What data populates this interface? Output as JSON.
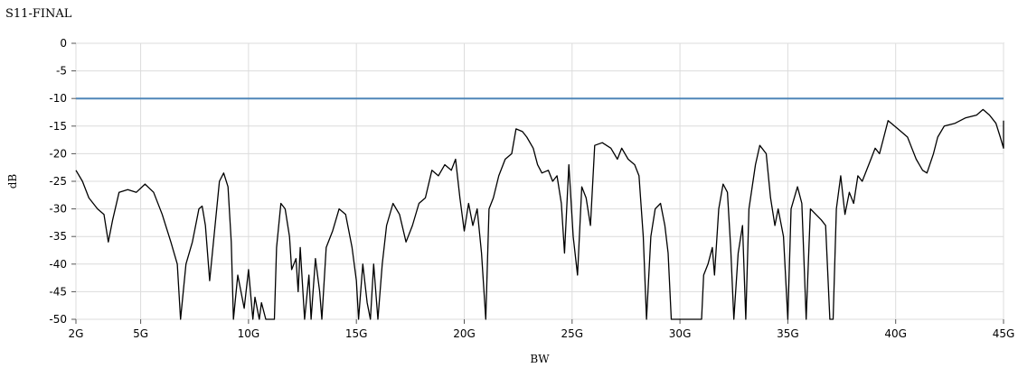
{
  "chart_data": {
    "type": "line",
    "title": "S11-FINAL",
    "xlabel": "BW",
    "ylabel": "dB",
    "xlim": [
      2,
      45
    ],
    "ylim": [
      -50,
      0
    ],
    "grid": true,
    "x_ticks": [
      {
        "value": 2,
        "label": "2G"
      },
      {
        "value": 5,
        "label": "5G"
      },
      {
        "value": 10,
        "label": "10G"
      },
      {
        "value": 15,
        "label": "15G"
      },
      {
        "value": 20,
        "label": "20G"
      },
      {
        "value": 25,
        "label": "25G"
      },
      {
        "value": 30,
        "label": "30G"
      },
      {
        "value": 35,
        "label": "35G"
      },
      {
        "value": 40,
        "label": "40G"
      },
      {
        "value": 45,
        "label": "45G"
      }
    ],
    "y_ticks": [
      0,
      -5,
      -10,
      -15,
      -20,
      -25,
      -30,
      -35,
      -40,
      -45,
      -50
    ],
    "reference_line": {
      "y": -10,
      "color": "#4f86b8"
    },
    "series": [
      {
        "color": "#000000",
        "points": [
          [
            2.0,
            -23
          ],
          [
            2.3,
            -25
          ],
          [
            2.6,
            -28
          ],
          [
            3.0,
            -30
          ],
          [
            3.3,
            -31
          ],
          [
            3.5,
            -36
          ],
          [
            3.7,
            -32
          ],
          [
            4.0,
            -27
          ],
          [
            4.4,
            -26.5
          ],
          [
            4.8,
            -27
          ],
          [
            5.2,
            -25.5
          ],
          [
            5.6,
            -27
          ],
          [
            6.0,
            -31
          ],
          [
            6.4,
            -36
          ],
          [
            6.7,
            -40
          ],
          [
            6.85,
            -50
          ],
          [
            7.1,
            -40
          ],
          [
            7.4,
            -36
          ],
          [
            7.7,
            -30
          ],
          [
            7.85,
            -29.5
          ],
          [
            8.0,
            -33
          ],
          [
            8.2,
            -43
          ],
          [
            8.35,
            -37
          ],
          [
            8.5,
            -31
          ],
          [
            8.65,
            -25
          ],
          [
            8.85,
            -23.5
          ],
          [
            9.05,
            -26
          ],
          [
            9.2,
            -36
          ],
          [
            9.3,
            -50
          ],
          [
            9.5,
            -42
          ],
          [
            9.8,
            -48
          ],
          [
            10.0,
            -41
          ],
          [
            10.2,
            -50
          ],
          [
            10.3,
            -46
          ],
          [
            10.5,
            -50
          ],
          [
            10.6,
            -47
          ],
          [
            10.8,
            -50
          ],
          [
            11.0,
            -50
          ],
          [
            11.2,
            -50
          ],
          [
            11.3,
            -37
          ],
          [
            11.5,
            -29
          ],
          [
            11.7,
            -30
          ],
          [
            11.9,
            -35
          ],
          [
            12.0,
            -41
          ],
          [
            12.2,
            -39
          ],
          [
            12.3,
            -45
          ],
          [
            12.4,
            -37
          ],
          [
            12.6,
            -50
          ],
          [
            12.8,
            -42
          ],
          [
            12.9,
            -50
          ],
          [
            13.1,
            -39
          ],
          [
            13.3,
            -45
          ],
          [
            13.4,
            -50
          ],
          [
            13.6,
            -37
          ],
          [
            13.9,
            -34
          ],
          [
            14.2,
            -30
          ],
          [
            14.5,
            -31
          ],
          [
            14.8,
            -37
          ],
          [
            15.0,
            -43
          ],
          [
            15.1,
            -50
          ],
          [
            15.3,
            -40
          ],
          [
            15.5,
            -47
          ],
          [
            15.65,
            -50
          ],
          [
            15.8,
            -40
          ],
          [
            16.0,
            -50
          ],
          [
            16.2,
            -40
          ],
          [
            16.4,
            -33
          ],
          [
            16.7,
            -29
          ],
          [
            17.0,
            -31
          ],
          [
            17.3,
            -36
          ],
          [
            17.6,
            -33
          ],
          [
            17.9,
            -29
          ],
          [
            18.2,
            -28
          ],
          [
            18.5,
            -23
          ],
          [
            18.8,
            -24
          ],
          [
            19.1,
            -22
          ],
          [
            19.4,
            -23
          ],
          [
            19.6,
            -21
          ],
          [
            19.8,
            -28
          ],
          [
            20.0,
            -34
          ],
          [
            20.2,
            -29
          ],
          [
            20.4,
            -33
          ],
          [
            20.6,
            -30
          ],
          [
            20.8,
            -38
          ],
          [
            21.0,
            -50
          ],
          [
            21.15,
            -30
          ],
          [
            21.35,
            -28
          ],
          [
            21.6,
            -24
          ],
          [
            21.9,
            -21
          ],
          [
            22.2,
            -20
          ],
          [
            22.4,
            -15.5
          ],
          [
            22.7,
            -16
          ],
          [
            22.9,
            -17
          ],
          [
            23.2,
            -19
          ],
          [
            23.4,
            -22
          ],
          [
            23.6,
            -23.5
          ],
          [
            23.9,
            -23
          ],
          [
            24.1,
            -25
          ],
          [
            24.3,
            -24
          ],
          [
            24.5,
            -29
          ],
          [
            24.65,
            -38
          ],
          [
            24.85,
            -22
          ],
          [
            25.05,
            -35
          ],
          [
            25.25,
            -42
          ],
          [
            25.45,
            -26
          ],
          [
            25.65,
            -28
          ],
          [
            25.85,
            -33
          ],
          [
            26.05,
            -18.5
          ],
          [
            26.4,
            -18
          ],
          [
            26.8,
            -19
          ],
          [
            27.1,
            -21
          ],
          [
            27.3,
            -19
          ],
          [
            27.6,
            -21
          ],
          [
            27.9,
            -22
          ],
          [
            28.1,
            -24
          ],
          [
            28.3,
            -35
          ],
          [
            28.45,
            -50
          ],
          [
            28.65,
            -35
          ],
          [
            28.85,
            -30
          ],
          [
            29.1,
            -29
          ],
          [
            29.3,
            -33
          ],
          [
            29.45,
            -38
          ],
          [
            29.6,
            -50
          ],
          [
            30.2,
            -50
          ],
          [
            30.5,
            -50
          ],
          [
            31.0,
            -50
          ],
          [
            31.1,
            -42
          ],
          [
            31.3,
            -40
          ],
          [
            31.5,
            -37
          ],
          [
            31.6,
            -42
          ],
          [
            31.8,
            -30
          ],
          [
            32.0,
            -25.5
          ],
          [
            32.2,
            -27
          ],
          [
            32.35,
            -37
          ],
          [
            32.5,
            -50
          ],
          [
            32.7,
            -38
          ],
          [
            32.9,
            -33
          ],
          [
            33.05,
            -50
          ],
          [
            33.2,
            -30
          ],
          [
            33.5,
            -22
          ],
          [
            33.7,
            -18.5
          ],
          [
            34.0,
            -20
          ],
          [
            34.2,
            -28
          ],
          [
            34.4,
            -33
          ],
          [
            34.55,
            -30
          ],
          [
            34.8,
            -35
          ],
          [
            35.0,
            -50
          ],
          [
            35.15,
            -30
          ],
          [
            35.45,
            -26
          ],
          [
            35.65,
            -29
          ],
          [
            35.85,
            -50
          ],
          [
            36.05,
            -30
          ],
          [
            36.3,
            -31
          ],
          [
            36.55,
            -32
          ],
          [
            36.75,
            -33
          ],
          [
            36.95,
            -50
          ],
          [
            37.1,
            -50
          ],
          [
            37.25,
            -30
          ],
          [
            37.45,
            -24
          ],
          [
            37.65,
            -31
          ],
          [
            37.85,
            -27
          ],
          [
            38.05,
            -29
          ],
          [
            38.25,
            -24
          ],
          [
            38.45,
            -25
          ],
          [
            38.65,
            -23
          ],
          [
            38.85,
            -21
          ],
          [
            39.05,
            -19
          ],
          [
            39.25,
            -20
          ],
          [
            39.45,
            -17
          ],
          [
            39.65,
            -14
          ],
          [
            39.95,
            -15
          ],
          [
            40.25,
            -16
          ],
          [
            40.55,
            -17
          ],
          [
            40.75,
            -19
          ],
          [
            40.95,
            -21
          ],
          [
            41.25,
            -23
          ],
          [
            41.45,
            -23.5
          ],
          [
            41.75,
            -20
          ],
          [
            41.95,
            -17
          ],
          [
            42.25,
            -15
          ],
          [
            42.75,
            -14.5
          ],
          [
            43.25,
            -13.5
          ],
          [
            43.75,
            -13
          ],
          [
            44.05,
            -12
          ],
          [
            44.35,
            -13
          ],
          [
            44.65,
            -14.5
          ],
          [
            44.85,
            -17
          ],
          [
            45.0,
            -19
          ],
          [
            45.2,
            -17
          ],
          [
            45.4,
            -14
          ]
        ]
      }
    ]
  }
}
